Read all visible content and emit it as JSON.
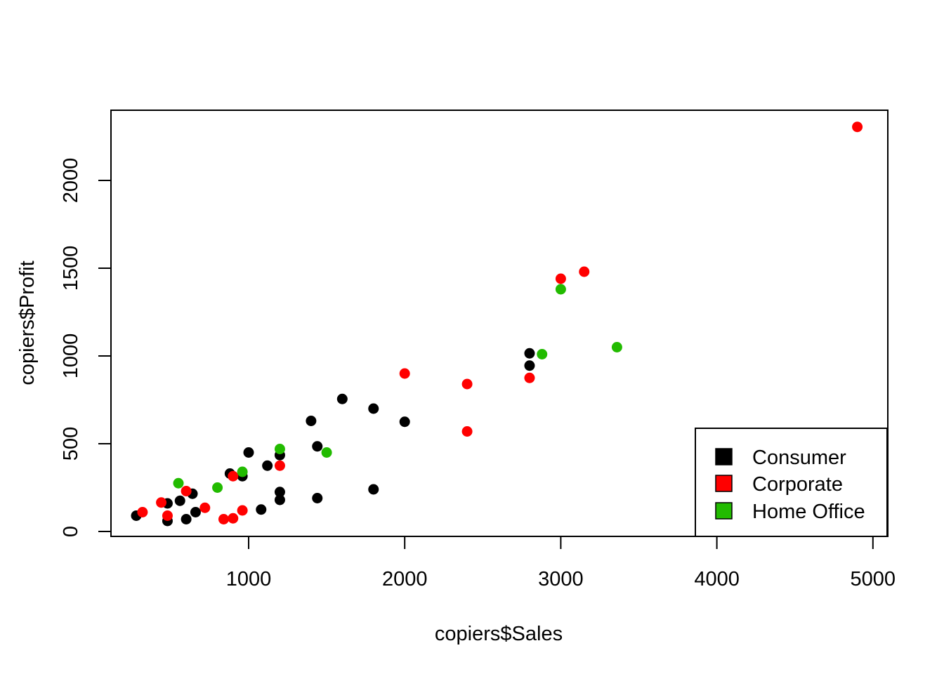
{
  "chart_data": {
    "type": "scatter",
    "title": "",
    "xlabel": "copiers$Sales",
    "ylabel": "copiers$Profit",
    "xlim": [
      300,
      5000
    ],
    "ylim": [
      0,
      2300
    ],
    "x_ticks": [
      1000,
      2000,
      3000,
      4000,
      5000
    ],
    "y_ticks": [
      0,
      500,
      1000,
      1500,
      2000
    ],
    "grid": false,
    "legend_position": "bottom-right",
    "series": [
      {
        "name": "Consumer",
        "color": "#000000",
        "points": [
          [
            280,
            90
          ],
          [
            480,
            60
          ],
          [
            480,
            160
          ],
          [
            560,
            175
          ],
          [
            600,
            70
          ],
          [
            640,
            215
          ],
          [
            660,
            110
          ],
          [
            880,
            330
          ],
          [
            960,
            315
          ],
          [
            1000,
            450
          ],
          [
            1080,
            125
          ],
          [
            1120,
            375
          ],
          [
            1200,
            435
          ],
          [
            1200,
            225
          ],
          [
            1200,
            180
          ],
          [
            1400,
            630
          ],
          [
            1440,
            485
          ],
          [
            1440,
            190
          ],
          [
            1600,
            755
          ],
          [
            1800,
            700
          ],
          [
            1800,
            240
          ],
          [
            2000,
            625
          ],
          [
            2800,
            1015
          ],
          [
            2800,
            945
          ]
        ]
      },
      {
        "name": "Corporate",
        "color": "#ff0000",
        "points": [
          [
            320,
            110
          ],
          [
            440,
            165
          ],
          [
            480,
            90
          ],
          [
            600,
            230
          ],
          [
            720,
            135
          ],
          [
            840,
            70
          ],
          [
            900,
            75
          ],
          [
            900,
            315
          ],
          [
            960,
            120
          ],
          [
            1200,
            375
          ],
          [
            2000,
            900
          ],
          [
            2400,
            840
          ],
          [
            2400,
            570
          ],
          [
            2800,
            875
          ],
          [
            3000,
            1440
          ],
          [
            3150,
            1480
          ],
          [
            4900,
            2305
          ]
        ]
      },
      {
        "name": "Home Office",
        "color": "#22bb00",
        "points": [
          [
            550,
            275
          ],
          [
            800,
            250
          ],
          [
            960,
            340
          ],
          [
            1200,
            470
          ],
          [
            1500,
            450
          ],
          [
            2880,
            1010
          ],
          [
            3000,
            1380
          ],
          [
            3360,
            1050
          ]
        ]
      }
    ]
  }
}
